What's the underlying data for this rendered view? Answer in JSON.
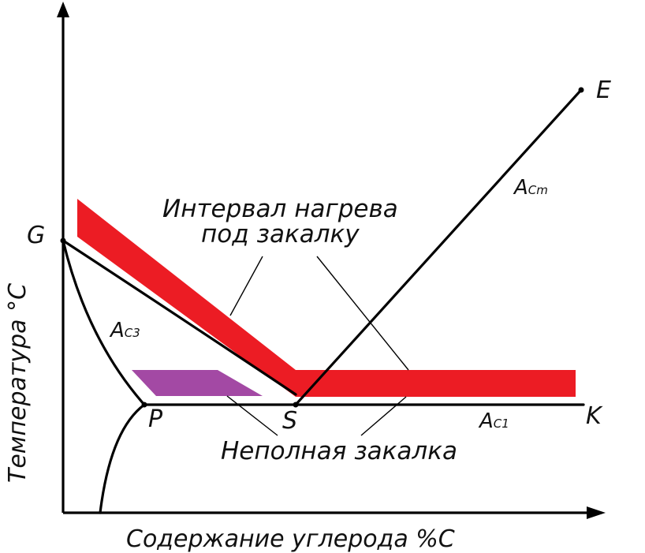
{
  "axes": {
    "y_title": "Температура °С",
    "x_title": "Содержание углерода %С"
  },
  "points": {
    "G": "G",
    "P": "P",
    "S": "S",
    "E": "E",
    "K": "K"
  },
  "critical_lines": {
    "acm": {
      "main": "A",
      "sub": "Cm"
    },
    "ac3": {
      "main": "A",
      "sub": "C3"
    },
    "ac1": {
      "main": "A",
      "sub": "C1"
    }
  },
  "annotations": {
    "heating_line1": "Интервал нагрева",
    "heating_line2": "под закалку",
    "partial": "Неполная закалка"
  },
  "colors": {
    "heating_band": "#ec1c24",
    "partial_zone": "#a349a4",
    "lines": "#000000"
  }
}
